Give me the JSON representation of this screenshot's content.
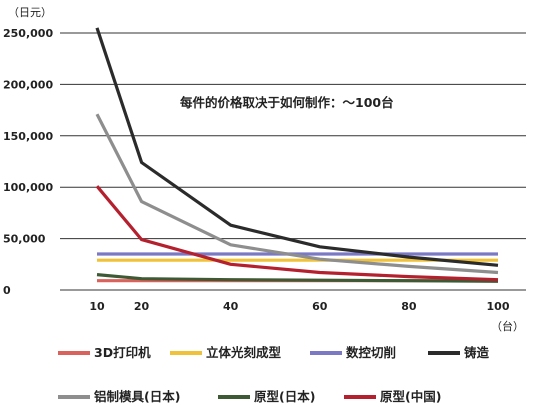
{
  "chart_data": {
    "type": "line",
    "y_unit": "（日元）",
    "x_unit": "（台）",
    "annotation": "每件的价格取决于如何制作：～100台",
    "ylim": [
      0,
      250000
    ],
    "xlim": [
      10,
      100
    ],
    "x_ticks": [
      10,
      20,
      40,
      60,
      80,
      100
    ],
    "y_ticks": [
      0,
      50000,
      100000,
      150000,
      200000,
      250000
    ],
    "y_tick_labels": [
      "0",
      "50,000",
      "100,000",
      "150,000",
      "200,000",
      "250,000"
    ],
    "grid": "horizontal",
    "legend_position": "bottom",
    "series": [
      {
        "name": "3D打印机",
        "color": "#d9625c",
        "x": [
          10,
          20,
          40,
          60,
          80,
          100
        ],
        "values": [
          9000,
          9000,
          9000,
          9000,
          9000,
          9000
        ]
      },
      {
        "name": "立体光刻成型",
        "color": "#f0c23a",
        "x": [
          10,
          20,
          40,
          60,
          80,
          100
        ],
        "values": [
          29000,
          29000,
          29000,
          29000,
          29000,
          29000
        ]
      },
      {
        "name": "数控切削",
        "color": "#7b79c4",
        "x": [
          10,
          20,
          40,
          60,
          80,
          100
        ],
        "values": [
          35000,
          35000,
          35000,
          35000,
          35000,
          35000
        ]
      },
      {
        "name": "铸造",
        "color": "#2b2b2b",
        "x": [
          10,
          20,
          40,
          60,
          80,
          100
        ],
        "values": [
          255000,
          124000,
          63000,
          42000,
          32000,
          24000
        ]
      },
      {
        "name": "铝制模具(日本)",
        "color": "#8e8e8e",
        "x": [
          10,
          20,
          40,
          60,
          80,
          100
        ],
        "values": [
          171000,
          86000,
          44000,
          30000,
          23000,
          17000
        ]
      },
      {
        "name": "原型(日本)",
        "color": "#3d5a34",
        "x": [
          10,
          20,
          40,
          60,
          80,
          100
        ],
        "values": [
          15000,
          11000,
          10000,
          9500,
          9000,
          8500
        ]
      },
      {
        "name": "原型(中国)",
        "color": "#b5202e",
        "x": [
          10,
          20,
          40,
          60,
          80,
          100
        ],
        "values": [
          101000,
          49000,
          25000,
          17000,
          13000,
          10000
        ]
      }
    ]
  }
}
